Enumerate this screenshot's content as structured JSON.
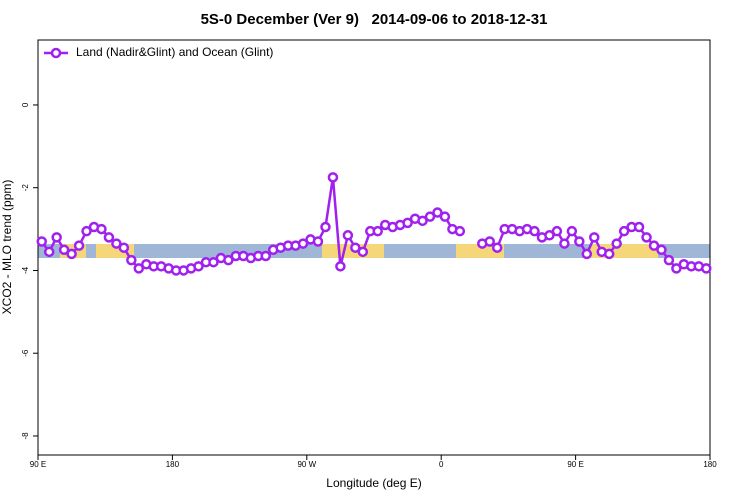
{
  "chart_data": {
    "type": "line",
    "title": "5S-0 December (Ver 9)   2014-09-06 to 2018-12-31",
    "xlabel": "Longitude (deg E)",
    "ylabel": "XCO2 - MLO trend (ppm)",
    "xlim": [
      90,
      540
    ],
    "ylim": [
      -8.46,
      1.57
    ],
    "xticks": [
      {
        "value": 90,
        "label": "90 E"
      },
      180,
      {
        "value": 270,
        "label": "90 W"
      },
      {
        "value": 360,
        "label": "0"
      },
      {
        "value": 450,
        "label": "90 E"
      },
      {
        "value": 540,
        "label": "180"
      }
    ],
    "yticks": [
      0,
      -2,
      -4,
      -6,
      -8
    ],
    "legend": "upper left",
    "x": [
      92.5,
      97.5,
      102.5,
      107.5,
      112.5,
      117.5,
      122.5,
      127.5,
      132.5,
      137.5,
      142.5,
      147.5,
      152.5,
      157.5,
      162.5,
      167.5,
      172.5,
      177.5,
      182.5,
      187.5,
      192.5,
      197.5,
      202.5,
      207.5,
      212.5,
      217.5,
      222.5,
      227.5,
      232.5,
      237.5,
      242.5,
      247.5,
      252.5,
      257.5,
      262.5,
      267.5,
      272.5,
      277.5,
      282.5,
      287.5,
      292.5,
      297.5,
      302.5,
      307.5,
      312.5,
      317.5,
      322.5,
      327.5,
      332.5,
      337.5,
      342.5,
      347.5,
      352.5,
      357.5,
      362.5,
      367.5,
      372.5,
      377.5,
      382.5,
      387.5,
      392.5,
      397.5,
      402.5,
      407.5,
      412.5,
      417.5,
      422.5,
      427.5,
      432.5,
      437.5,
      442.5,
      447.5,
      452.5,
      457.5,
      462.5,
      467.5,
      472.5,
      477.5,
      482.5,
      487.5,
      492.5,
      497.5,
      502.5,
      507.5,
      512.5,
      517.5,
      522.5,
      527.5,
      532.5,
      537.5
    ],
    "series": [
      {
        "name": "Land (Nadir&Glint) and Ocean (Glint)",
        "color": "#a020f0",
        "values": [
          -3.3,
          -3.55,
          -3.2,
          -3.5,
          -3.6,
          -3.4,
          -3.05,
          -2.95,
          -3.0,
          -3.2,
          -3.35,
          -3.45,
          -3.75,
          -3.95,
          -3.85,
          -3.9,
          -3.9,
          -3.95,
          -4.0,
          -4.0,
          -3.95,
          -3.9,
          -3.8,
          -3.8,
          -3.7,
          -3.75,
          -3.65,
          -3.65,
          -3.7,
          -3.65,
          -3.65,
          -3.5,
          -3.45,
          -3.4,
          -3.4,
          -3.35,
          -3.25,
          -3.3,
          -2.95,
          -1.75,
          -3.9,
          -3.15,
          -3.45,
          -3.55,
          -3.05,
          -3.05,
          -2.9,
          -2.95,
          -2.9,
          -2.85,
          -2.75,
          -2.8,
          -2.7,
          -2.6,
          -2.7,
          -3.0,
          -3.05,
          null,
          null,
          -3.35,
          -3.3,
          -3.45,
          -3.0,
          -3.0,
          -3.05,
          -3.0,
          -3.05,
          -3.2,
          -3.15,
          -3.05,
          -3.35,
          -3.05,
          -3.3,
          -3.6,
          -3.2,
          -3.55,
          -3.6,
          -3.35,
          -3.05,
          -2.95,
          -2.95,
          -3.2,
          -3.4,
          -3.5,
          -3.75,
          -3.95,
          -3.85,
          -3.9,
          -3.9,
          -3.95
        ]
      }
    ]
  }
}
